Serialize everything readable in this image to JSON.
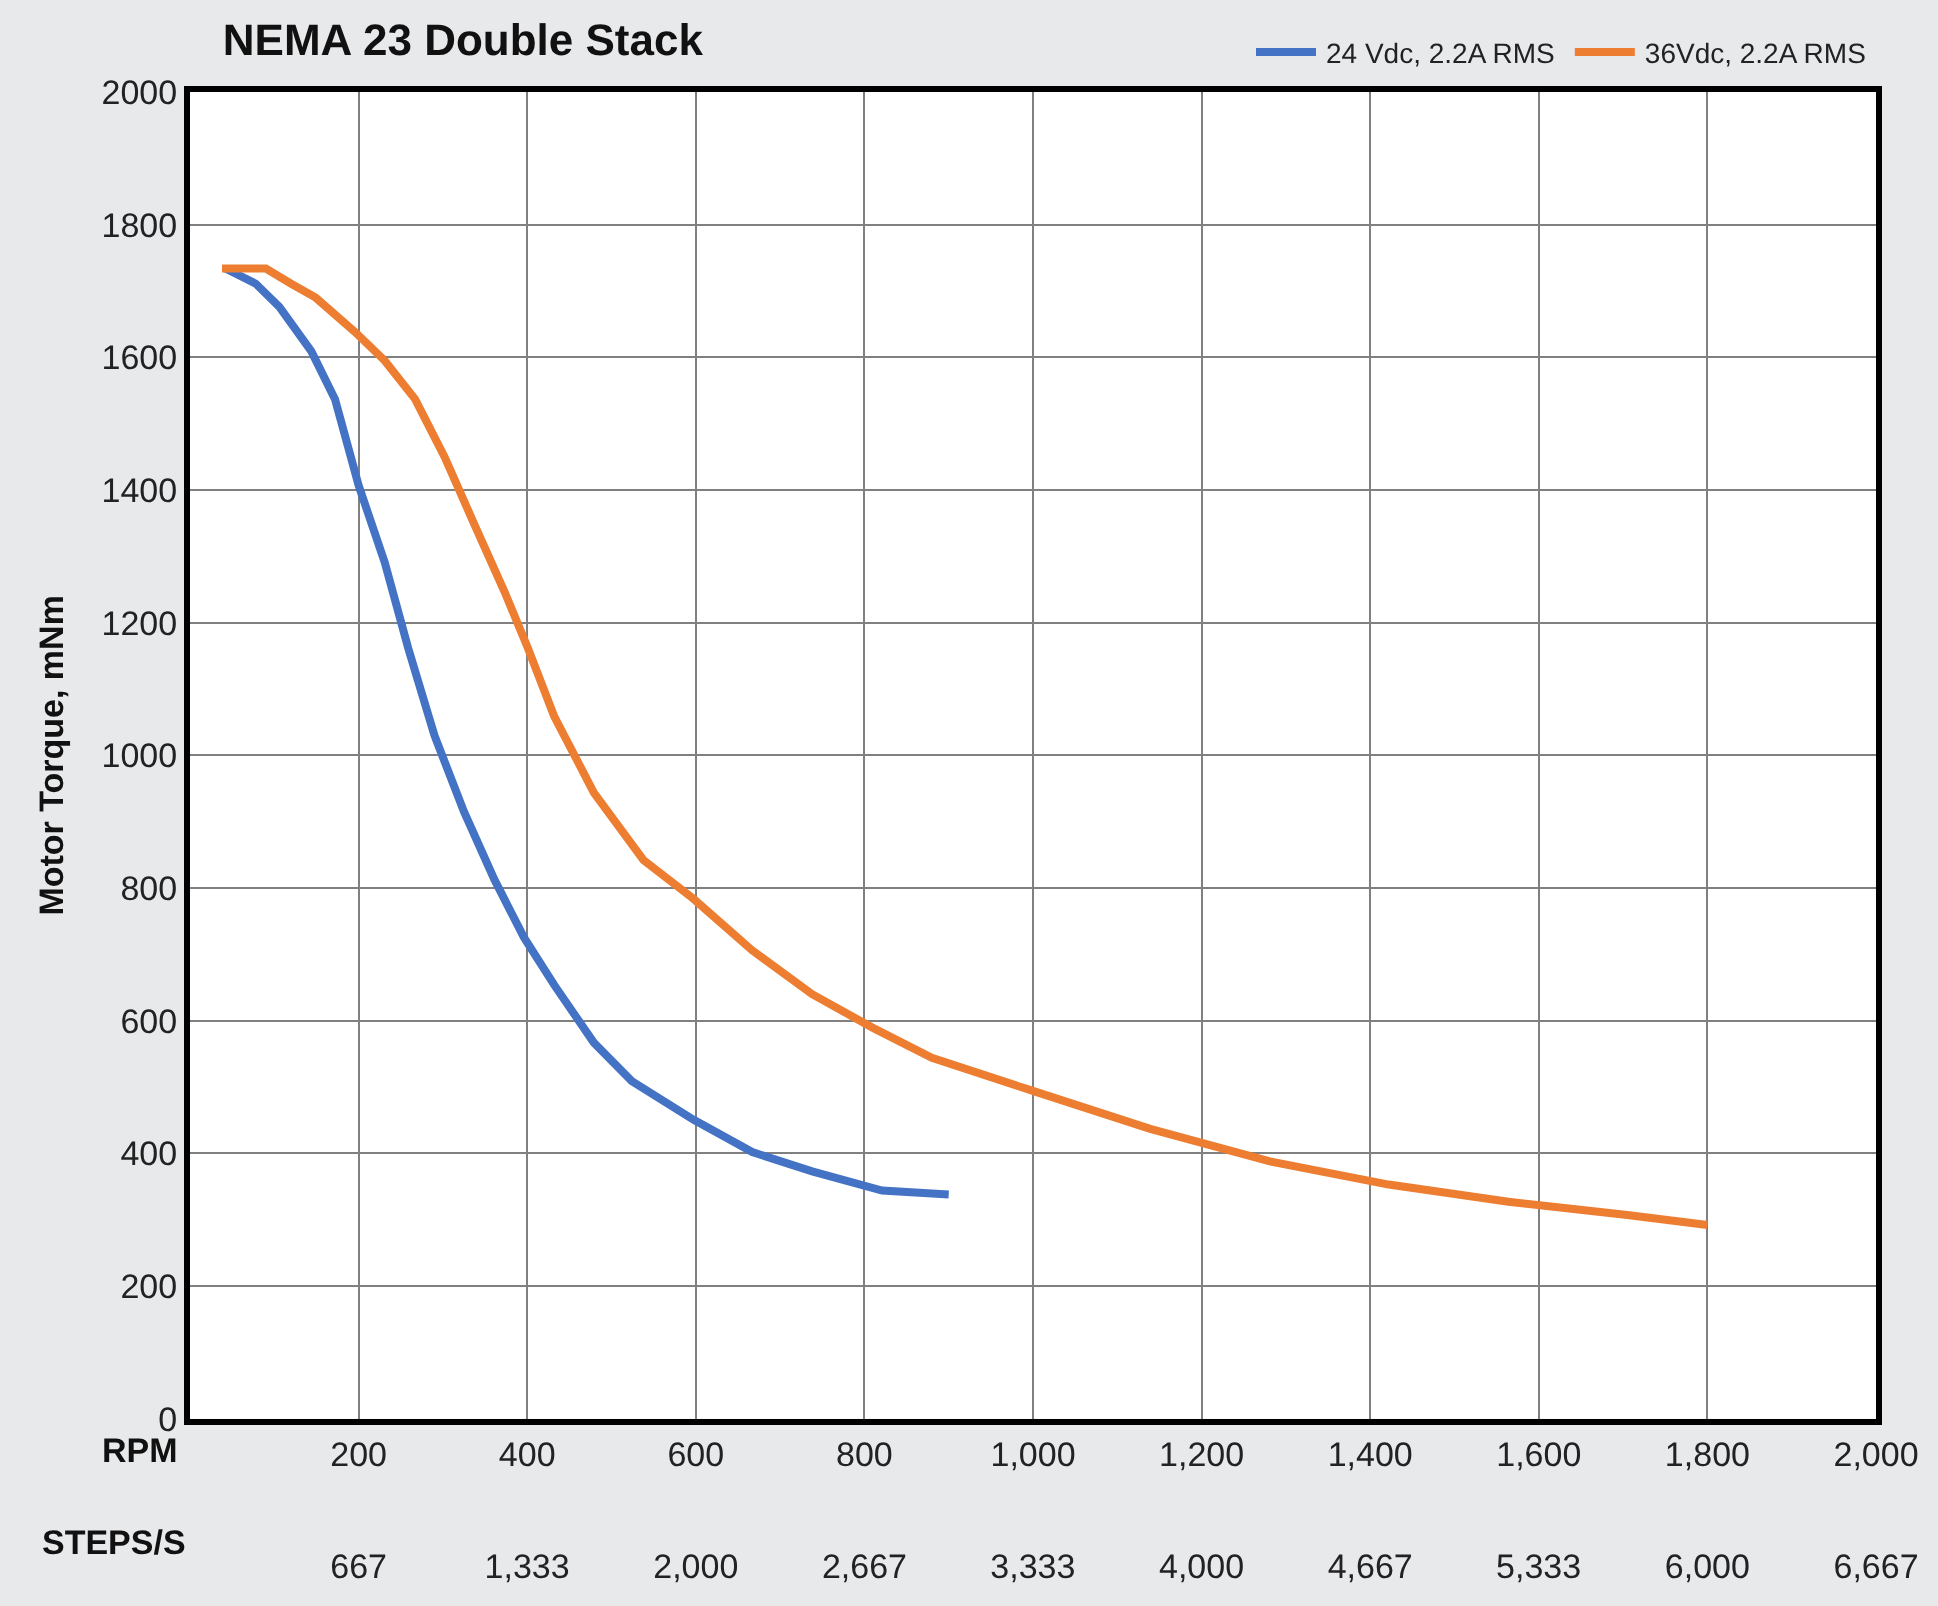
{
  "chart_data": {
    "type": "line",
    "title": "NEMA 23 Double Stack",
    "ylabel": "Motor Torque, mNm",
    "xlabel": "RPM",
    "x2label": "STEPS/S",
    "xlim": [
      0,
      2000
    ],
    "xticks": [
      200,
      400,
      600,
      800,
      {
        "value": 1000,
        "label": "1,000"
      },
      {
        "value": 1200,
        "label": "1,200"
      },
      {
        "value": 1400,
        "label": "1,400"
      },
      {
        "value": 1600,
        "label": "1,600"
      },
      {
        "value": 1800,
        "label": "1,800"
      },
      {
        "value": 2000,
        "label": "2,000"
      }
    ],
    "x2lim": [
      0,
      6667
    ],
    "x2ticks": [
      667,
      {
        "value": 1333,
        "label": "1,333"
      },
      {
        "value": 2000,
        "label": "2,000"
      },
      {
        "value": 2667,
        "label": "2,667"
      },
      {
        "value": 3333,
        "label": "3,333"
      },
      {
        "value": 4000,
        "label": "4,000"
      },
      {
        "value": 4667,
        "label": "4,667"
      },
      {
        "value": 5333,
        "label": "5,333"
      },
      {
        "value": 6000,
        "label": "6,000"
      },
      {
        "value": 6667,
        "label": "6,667"
      }
    ],
    "ylim": [
      0,
      2000
    ],
    "yticks": [
      0,
      200,
      400,
      600,
      800,
      1000,
      1200,
      1400,
      1600,
      1800,
      2000
    ],
    "grid": true,
    "legend": "top right",
    "marker": "none",
    "line_style": "solid",
    "series": [
      {
        "name": "24 Vdc, 2.2A RMS",
        "color": "#4472c4",
        "x": [
          42,
          78,
          106,
          144,
          172,
          200,
          231,
          259,
          290,
          325,
          361,
          396,
          432,
          479,
          524,
          597,
          667,
          738,
          821,
          900
        ],
        "values": [
          1734,
          1711,
          1676,
          1609,
          1537,
          1407,
          1291,
          1161,
          1030,
          915,
          813,
          726,
          654,
          567,
          509,
          451,
          402,
          373,
          344,
          338
        ]
      },
      {
        "name": "36Vdc, 2.2A RMS",
        "color": "#ed7d31",
        "x": [
          38,
          90,
          120,
          149,
          196,
          231,
          267,
          302,
          337,
          373,
          401,
          432,
          479,
          538,
          597,
          667,
          738,
          809,
          880,
          998,
          1139,
          1281,
          1422,
          1564,
          1705,
          1800
        ],
        "values": [
          1734,
          1734,
          1711,
          1690,
          1638,
          1595,
          1537,
          1450,
          1349,
          1247,
          1161,
          1059,
          944,
          842,
          784,
          706,
          640,
          590,
          544,
          495,
          437,
          388,
          353,
          327,
          307,
          292
        ]
      }
    ]
  }
}
